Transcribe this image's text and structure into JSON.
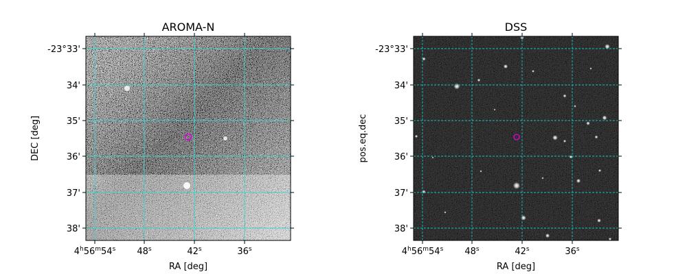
{
  "panels": [
    {
      "id": "left",
      "title": "AROMA-N",
      "xlabel": "RA [deg]",
      "ylabel": "DEC [deg]",
      "style": "noise",
      "grid_color": "#3fd0d0",
      "grid_dash": false
    },
    {
      "id": "right",
      "title": "DSS",
      "xlabel": "RA [deg]",
      "ylabel": "pos.eq.dec",
      "style": "stars",
      "grid_color": "#17c2c2",
      "grid_dash": true
    }
  ],
  "x_ticks": [
    {
      "label": "4h56m54s",
      "main": "4",
      "parts": [
        [
          "h",
          "56"
        ],
        [
          "m",
          "54"
        ],
        [
          "s",
          ""
        ]
      ]
    },
    {
      "label": "48s",
      "main": "48",
      "parts": [
        [
          "s",
          ""
        ]
      ]
    },
    {
      "label": "42s",
      "main": "42",
      "parts": [
        [
          "s",
          ""
        ]
      ]
    },
    {
      "label": "36s",
      "main": "36",
      "parts": [
        [
          "s",
          ""
        ]
      ]
    }
  ],
  "y_ticks": [
    "-23°33'",
    "34'",
    "35'",
    "36'",
    "37'",
    "38'"
  ],
  "target_marker_color": "#e600e6"
}
